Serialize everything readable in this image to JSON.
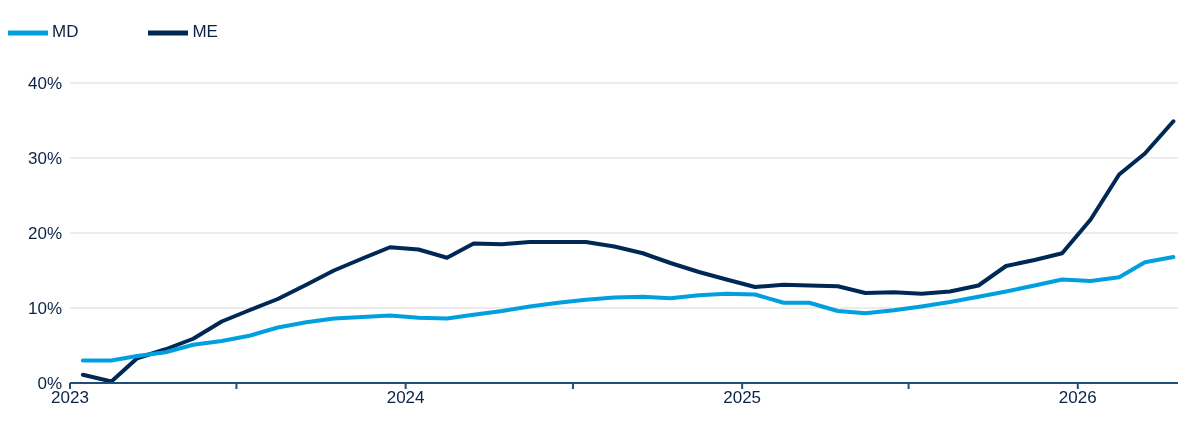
{
  "chart_data": {
    "type": "line",
    "x": [
      "2023-01-15",
      "2023-02-15",
      "2023-03-15",
      "2023-04-15",
      "2023-05-15",
      "2023-06-15",
      "2023-07-15",
      "2023-08-15",
      "2023-09-15",
      "2023-10-15",
      "2023-11-15",
      "2023-12-15",
      "2024-01-15",
      "2024-02-15",
      "2024-03-15",
      "2024-04-15",
      "2024-05-15",
      "2024-06-15",
      "2024-07-15",
      "2024-08-15",
      "2024-09-15",
      "2024-10-15",
      "2024-11-15",
      "2024-12-15",
      "2025-01-15",
      "2025-02-15",
      "2025-03-15",
      "2025-04-15",
      "2025-05-15",
      "2025-06-15",
      "2025-07-15",
      "2025-08-15",
      "2025-09-15",
      "2025-10-15",
      "2025-11-15",
      "2025-12-15",
      "2026-01-15",
      "2026-02-15",
      "2026-03-15",
      "2026-04-15"
    ],
    "series": [
      {
        "name": "ME",
        "color": "#002855",
        "values": [
          1.1,
          0.2,
          3.3,
          4.5,
          5.9,
          8.2,
          9.7,
          11.2,
          13.1,
          15.0,
          16.6,
          18.1,
          17.8,
          16.7,
          18.6,
          18.5,
          18.8,
          18.8,
          18.8,
          18.2,
          17.3,
          16.0,
          14.8,
          13.8,
          12.8,
          13.1,
          13.0,
          12.9,
          12.0,
          12.1,
          11.9,
          12.2,
          13.0,
          15.6,
          16.4,
          17.3,
          21.8,
          27.8,
          30.6,
          34.9
        ]
      },
      {
        "name": "MD",
        "color": "#009fdf",
        "values": [
          3.0,
          3.0,
          3.6,
          4.1,
          5.1,
          5.6,
          6.3,
          7.4,
          8.1,
          8.6,
          8.8,
          9.0,
          8.7,
          8.6,
          9.1,
          9.6,
          10.2,
          10.7,
          11.1,
          11.4,
          11.5,
          11.3,
          11.7,
          11.9,
          11.8,
          10.7,
          10.7,
          9.6,
          9.3,
          9.7,
          10.2,
          10.8,
          11.5,
          12.2,
          13.0,
          13.8,
          13.6,
          14.1,
          16.1,
          16.8
        ]
      }
    ],
    "xlim": [
      "2023-01-01",
      "2026-04-20"
    ],
    "xticks": [
      {
        "value": "2023-01-01",
        "label": "2023"
      },
      {
        "value": "2023-07-01",
        "label": null
      },
      {
        "value": "2024-01-01",
        "label": "2024"
      },
      {
        "value": "2024-07-01",
        "label": null
      },
      {
        "value": "2025-01-01",
        "label": "2025"
      },
      {
        "value": "2025-07-01",
        "label": null
      },
      {
        "value": "2026-01-01",
        "label": "2026"
      }
    ],
    "ylim": [
      0,
      40
    ],
    "yticks": [
      {
        "value": 0,
        "label": "0%"
      },
      {
        "value": 10,
        "label": "10%"
      },
      {
        "value": 20,
        "label": "20%"
      },
      {
        "value": 30,
        "label": "30%"
      },
      {
        "value": 40,
        "label": "40%"
      }
    ],
    "grid": "y",
    "legend": "top left",
    "marker": "none",
    "line_style": "solid"
  }
}
